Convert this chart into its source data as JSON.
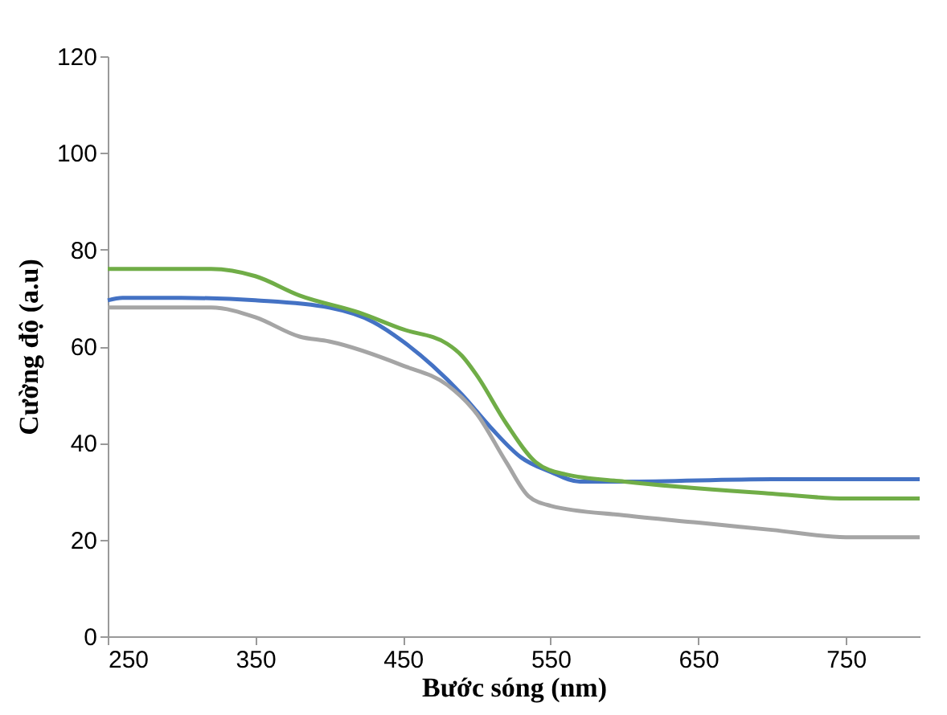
{
  "chart_data": {
    "type": "line",
    "xlabel": "Bước sóng (nm)",
    "ylabel": "Cường độ (a.u)",
    "xlim": [
      250,
      800
    ],
    "xticks": [
      250,
      350,
      450,
      550,
      650,
      750
    ],
    "ylim": [
      0,
      120
    ],
    "yticks": [
      0,
      20,
      40,
      60,
      80,
      100,
      120
    ],
    "grid": false,
    "legend": false,
    "series": [
      {
        "color": "#4472c4",
        "x": [
          250,
          260,
          300,
          350,
          400,
          430,
          450,
          470,
          490,
          510,
          530,
          550,
          570,
          600,
          700,
          800
        ],
        "values": [
          69.5,
          70,
          70,
          69.5,
          68,
          65,
          61,
          56,
          50,
          43,
          37,
          34,
          32,
          32,
          32.5,
          32.5
        ]
      },
      {
        "color": "#70ad47",
        "x": [
          250,
          320,
          350,
          380,
          420,
          450,
          480,
          490,
          500,
          520,
          540,
          560,
          600,
          700,
          750,
          800
        ],
        "values": [
          76,
          76,
          74.5,
          70.5,
          67,
          63.5,
          60.5,
          58,
          54,
          44,
          36,
          33.5,
          32,
          29.5,
          28.5,
          28.5
        ]
      },
      {
        "color": "#a5a5a5",
        "x": [
          250,
          320,
          350,
          380,
          400,
          450,
          480,
          500,
          520,
          535,
          550,
          600,
          650,
          700,
          750,
          800
        ],
        "values": [
          68,
          68,
          66,
          62,
          61,
          56,
          52,
          46,
          36,
          29,
          27,
          25,
          23.5,
          22,
          20.5,
          20.5
        ]
      }
    ]
  }
}
